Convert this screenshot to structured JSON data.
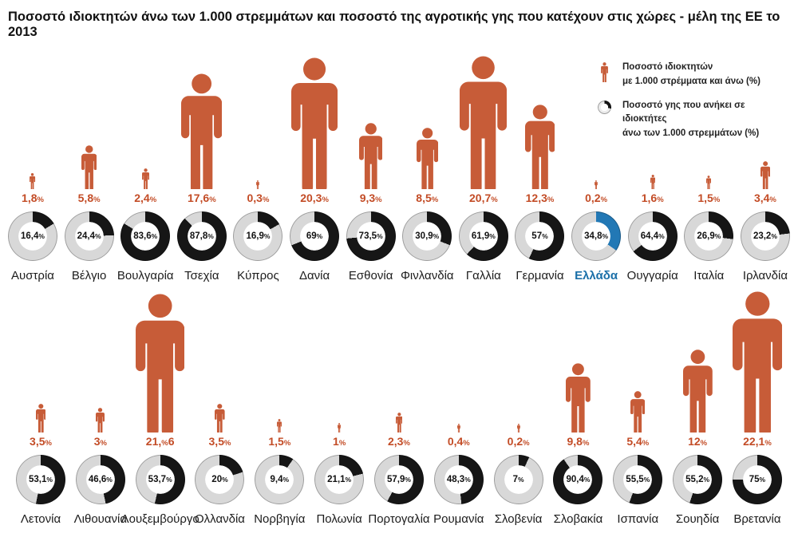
{
  "title": "Ποσοστό ιδιοκτητών άνω των 1.000 στρεμμάτων και ποσοστό της αγροτικής γης που κατέχουν στις χώρες - μέλη της ΕΕ το 2013",
  "legend": {
    "owners_line1": "Ποσοστό ιδιοκτητών",
    "owners_line2": "με 1.000 στρέμματα και άνω (%)",
    "land_line1": "Ποσοστό γης που ανήκει σε ιδιοκτήτες",
    "land_line2": "άνω των 1.000 στρεμμάτων (%)"
  },
  "pct_suffix": "%",
  "colors": {
    "orange": "#c75c38",
    "orange_text": "#c34c26",
    "black": "#161616",
    "gray": "#d8d8d8",
    "blue": "#2278b5",
    "blue_text": "#1a6fa8"
  },
  "rows": [
    [
      {
        "name": "Αυστρία",
        "owners": "1,8",
        "owners_val": 1.8,
        "land": "16,4",
        "land_val": 16.4,
        "highlight": false
      },
      {
        "name": "Βέλγιο",
        "owners": "5,8",
        "owners_val": 5.8,
        "land": "24,4",
        "land_val": 24.4,
        "highlight": false
      },
      {
        "name": "Βουλγαρία",
        "owners": "2,4",
        "owners_val": 2.4,
        "land": "83,6",
        "land_val": 83.6,
        "highlight": false
      },
      {
        "name": "Τσεχία",
        "owners": "17,6",
        "owners_val": 17.6,
        "land": "87,8",
        "land_val": 87.8,
        "highlight": false
      },
      {
        "name": "Κύπρος",
        "owners": "0,3",
        "owners_val": 0.3,
        "land": "16,9",
        "land_val": 16.9,
        "highlight": false
      },
      {
        "name": "Δανία",
        "owners": "20,3",
        "owners_val": 20.3,
        "land": "69",
        "land_val": 69,
        "highlight": false
      },
      {
        "name": "Εσθονία",
        "owners": "9,3",
        "owners_val": 9.3,
        "land": "73,5",
        "land_val": 73.5,
        "highlight": false
      },
      {
        "name": "Φινλανδία",
        "owners": "8,5",
        "owners_val": 8.5,
        "land": "30,9",
        "land_val": 30.9,
        "highlight": false
      },
      {
        "name": "Γαλλία",
        "owners": "20,7",
        "owners_val": 20.7,
        "land": "61,9",
        "land_val": 61.9,
        "highlight": false
      },
      {
        "name": "Γερμανία",
        "owners": "12,3",
        "owners_val": 12.3,
        "land": "57",
        "land_val": 57,
        "highlight": false
      },
      {
        "name": "Ελλάδα",
        "owners": "0,2",
        "owners_val": 0.2,
        "land": "34,8",
        "land_val": 34.8,
        "highlight": true
      },
      {
        "name": "Ουγγαρία",
        "owners": "1,6",
        "owners_val": 1.6,
        "land": "64,4",
        "land_val": 64.4,
        "highlight": false
      },
      {
        "name": "Ιταλία",
        "owners": "1,5",
        "owners_val": 1.5,
        "land": "26,9",
        "land_val": 26.9,
        "highlight": false
      },
      {
        "name": "Ιρλανδία",
        "owners": "3,4",
        "owners_val": 3.4,
        "land": "23,2",
        "land_val": 23.2,
        "highlight": false
      }
    ],
    [
      {
        "name": "Λετονία",
        "owners": "3,5",
        "owners_val": 3.5,
        "land": "53,1",
        "land_val": 53.1,
        "highlight": false
      },
      {
        "name": "Λιθουανία",
        "owners": "3",
        "owners_val": 3,
        "land": "46,6",
        "land_val": 46.6,
        "highlight": false
      },
      {
        "name": "Λουξεμβούργο",
        "owners": "21,%6",
        "owners_val": 21.6,
        "land": "53,7",
        "land_val": 53.7,
        "highlight": false
      },
      {
        "name": "Ολλανδία",
        "owners": "3,5",
        "owners_val": 3.5,
        "land": "20",
        "land_val": 20,
        "highlight": false
      },
      {
        "name": "Νορβηγία",
        "owners": "1,5",
        "owners_val": 1.5,
        "land": "9,4",
        "land_val": 9.4,
        "highlight": false
      },
      {
        "name": "Πολωνία",
        "owners": "1",
        "owners_val": 1,
        "land": "21,1",
        "land_val": 21.1,
        "highlight": false
      },
      {
        "name": "Πορτογαλία",
        "owners": "2,3",
        "owners_val": 2.3,
        "land": "57,9",
        "land_val": 57.9,
        "highlight": false
      },
      {
        "name": "Ρουμανία",
        "owners": "0,4",
        "owners_val": 0.4,
        "land": "48,3",
        "land_val": 48.3,
        "highlight": false
      },
      {
        "name": "Σλοβενία",
        "owners": "0,2",
        "owners_val": 0.2,
        "land": "7",
        "land_val": 7,
        "highlight": false
      },
      {
        "name": "Σλοβακία",
        "owners": "9,8",
        "owners_val": 9.8,
        "land": "90,4",
        "land_val": 90.4,
        "highlight": false
      },
      {
        "name": "Ισπανία",
        "owners": "5,4",
        "owners_val": 5.4,
        "land": "55,5",
        "land_val": 55.5,
        "highlight": false
      },
      {
        "name": "Σουηδία",
        "owners": "12",
        "owners_val": 12,
        "land": "55,2",
        "land_val": 55.2,
        "highlight": false
      },
      {
        "name": "Βρετανία",
        "owners": "22,1",
        "owners_val": 22.1,
        "land": "75",
        "land_val": 75,
        "highlight": false
      }
    ]
  ],
  "chart_data": {
    "type": "pictogram+donut",
    "title": "Ποσοστό ιδιοκτητών άνω των 1.000 στρεμμάτων και ποσοστό της αγροτικής γης που κατέχουν στις χώρες - μέλη της ΕΕ το 2013",
    "categories": [
      "Αυστρία",
      "Βέλγιο",
      "Βουλγαρία",
      "Τσεχία",
      "Κύπρος",
      "Δανία",
      "Εσθονία",
      "Φινλανδία",
      "Γαλλία",
      "Γερμανία",
      "Ελλάδα",
      "Ουγγαρία",
      "Ιταλία",
      "Ιρλανδία",
      "Λετονία",
      "Λιθουανία",
      "Λουξεμβούργο",
      "Ολλανδία",
      "Νορβηγία",
      "Πολωνία",
      "Πορτογαλία",
      "Ρουμανία",
      "Σλοβενία",
      "Σλοβακία",
      "Ισπανία",
      "Σουηδία",
      "Βρετανία"
    ],
    "series": [
      {
        "name": "Ποσοστό ιδιοκτητών με 1.000 στρέμματα και άνω (%)",
        "values": [
          1.8,
          5.8,
          2.4,
          17.6,
          0.3,
          20.3,
          9.3,
          8.5,
          20.7,
          12.3,
          0.2,
          1.6,
          1.5,
          3.4,
          3.5,
          3,
          21.6,
          3.5,
          1.5,
          1,
          2.3,
          0.4,
          0.2,
          9.8,
          5.4,
          12,
          22.1
        ]
      },
      {
        "name": "Ποσοστό γης που ανήκει σε ιδιοκτήτες άνω των 1.000 στρεμμάτων (%)",
        "values": [
          16.4,
          24.4,
          83.6,
          87.8,
          16.9,
          69,
          73.5,
          30.9,
          61.9,
          57,
          34.8,
          64.4,
          26.9,
          23.2,
          53.1,
          46.6,
          53.7,
          20,
          9.4,
          21.1,
          57.9,
          48.3,
          7,
          90.4,
          55.5,
          55.2,
          75
        ]
      }
    ],
    "highlighted_category": "Ελλάδα",
    "highlight_color": "#2278b5",
    "layout": {
      "rows": [
        14,
        13
      ],
      "legend_position": "top-right",
      "donut_start_angle_deg": 0,
      "donut_direction": "clockwise"
    }
  }
}
